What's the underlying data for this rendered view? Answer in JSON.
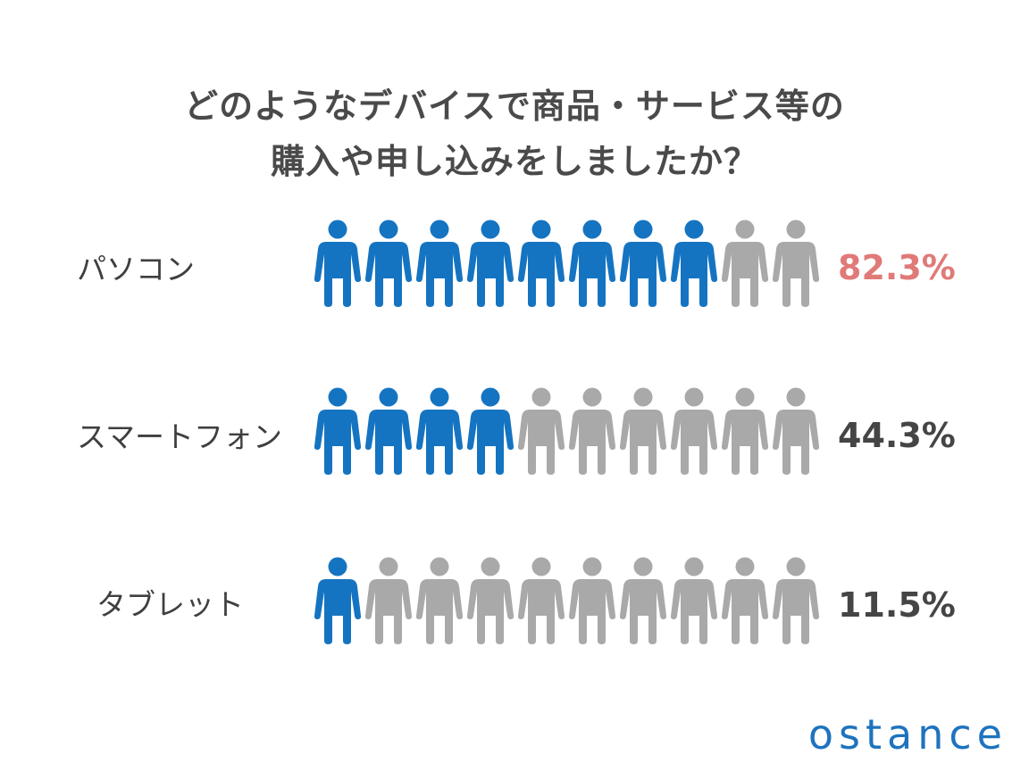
{
  "title_lines": [
    "どのようなデバイスで商品・サービス等の",
    "購入や申し込みをしましたか？"
  ],
  "logo": "ostance",
  "colors": {
    "filled_icon": "#1574c1",
    "empty_icon": "#a9a9a9",
    "highlight_value": "#e07a78",
    "value_text": "#454545",
    "logo": "#1e73be"
  },
  "chart_data": {
    "type": "pictograph",
    "icons_per_row": 10,
    "icon_name": "person-icon",
    "categories": [
      "パソコン",
      "スマートフォン",
      "タブレット"
    ],
    "values": [
      82.3,
      44.3,
      11.5
    ],
    "value_labels": [
      "82.3%",
      "44.3%",
      "11.5%"
    ],
    "filled_icons": [
      8,
      4,
      1
    ],
    "highlighted_category": "パソコン"
  }
}
